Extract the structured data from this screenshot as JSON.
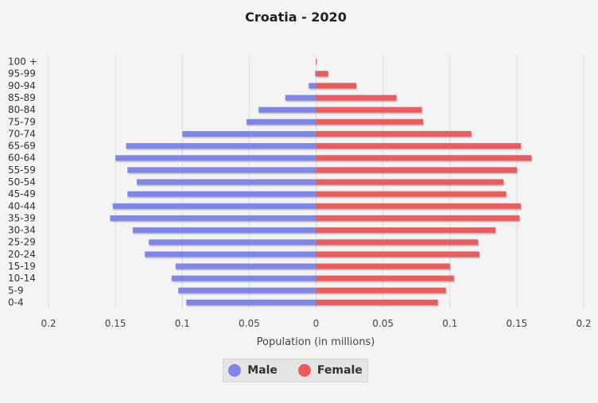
{
  "colors": {
    "male": "#7f86ea",
    "female": "#ec5c5c",
    "background": "#f4f4f4",
    "grid": "#d9dde6",
    "text": "#333333"
  },
  "chart_data": {
    "type": "bar",
    "orientation": "horizontal",
    "title": "Croatia - 2020",
    "xlabel": "Population (in millions)",
    "ylabel": "",
    "xlim": [
      -0.2,
      0.2
    ],
    "xticks": [
      -0.2,
      -0.15,
      -0.1,
      -0.05,
      0,
      0.05,
      0.1,
      0.15,
      0.2
    ],
    "xtick_labels": [
      "0.2",
      "0.15",
      "0.1",
      "0.05",
      "0",
      "0.05",
      "0.1",
      "0.15",
      "0.2"
    ],
    "grid": true,
    "legend_position": "bottom-center",
    "categories": [
      "100 +",
      "95-99",
      "90-94",
      "85-89",
      "80-84",
      "75-79",
      "70-74",
      "65-69",
      "60-64",
      "55-59",
      "50-54",
      "45-49",
      "40-44",
      "35-39",
      "30-34",
      "25-29",
      "20-24",
      "15-19",
      "10-14",
      "5-9",
      "0-4"
    ],
    "series": [
      {
        "name": "Male",
        "values": [
          0.0001,
          0.0007,
          0.0055,
          0.023,
          0.043,
          0.052,
          0.1,
          0.142,
          0.15,
          0.141,
          0.134,
          0.141,
          0.152,
          0.154,
          0.137,
          0.125,
          0.128,
          0.105,
          0.108,
          0.103,
          0.097
        ]
      },
      {
        "name": "Female",
        "values": [
          0.0006,
          0.009,
          0.03,
          0.06,
          0.079,
          0.08,
          0.116,
          0.153,
          0.161,
          0.15,
          0.14,
          0.142,
          0.153,
          0.152,
          0.134,
          0.121,
          0.122,
          0.1,
          0.103,
          0.097,
          0.091
        ]
      }
    ]
  }
}
